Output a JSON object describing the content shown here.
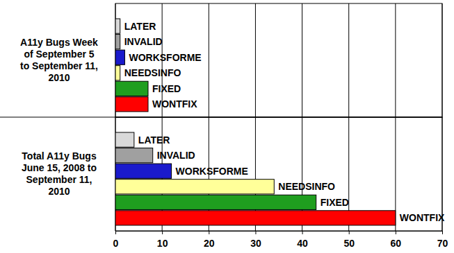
{
  "chart_data": [
    {
      "type": "bar",
      "orientation": "horizontal",
      "title": "A11y Bugs Week\nof September 5\nto September 11,\n2010",
      "categories": [
        "LATER",
        "INVALID",
        "WORKSFORME",
        "NEEDSINFO",
        "FIXED",
        "WONTFIX"
      ],
      "values": [
        1,
        1,
        2,
        1,
        7,
        7
      ],
      "colors": [
        "#d9d9d9",
        "#a0a0a0",
        "#1a1acc",
        "#ffff99",
        "#1f9e1f",
        "#ff0000"
      ],
      "xlim": [
        0,
        70
      ],
      "xticks": [
        0,
        10,
        20,
        30,
        40,
        50,
        60,
        70
      ],
      "grid": true,
      "tick_labels": false
    },
    {
      "type": "bar",
      "orientation": "horizontal",
      "title": "Total A11y Bugs\nJune 15, 2008 to\nSeptember 11,\n2010",
      "categories": [
        "LATER",
        "INVALID",
        "WORKSFORME",
        "NEEDSINFO",
        "FIXED",
        "WONTFIX"
      ],
      "values": [
        4,
        8,
        12,
        34,
        43,
        60
      ],
      "colors": [
        "#d9d9d9",
        "#a0a0a0",
        "#1a1acc",
        "#ffff99",
        "#1f9e1f",
        "#ff0000"
      ],
      "xlim": [
        0,
        70
      ],
      "xticks": [
        0,
        10,
        20,
        30,
        40,
        50,
        60,
        70
      ],
      "grid": true,
      "tick_labels": "x"
    }
  ]
}
